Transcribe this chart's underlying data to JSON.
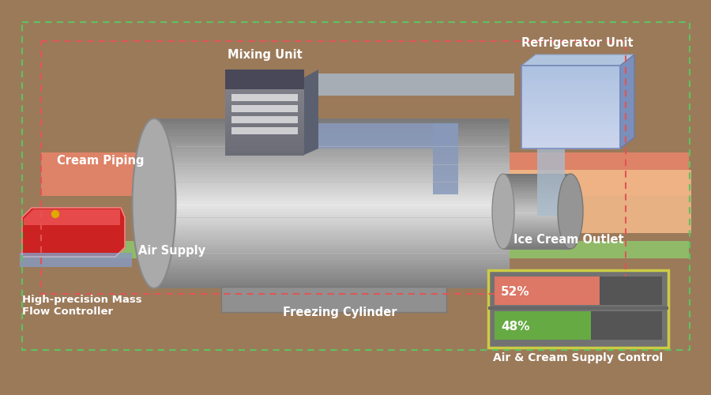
{
  "bg_color": "#9b7a5a",
  "cream_piping_label": "Cream Piping",
  "air_supply_label": "Air Supply",
  "ice_cream_outlet_label": "Ice Cream Outlet",
  "freezing_cylinder_label": "Freezing Cylinder",
  "mixing_unit_label": "Mixing Unit",
  "refrigerator_unit_label": "Refrigerator Unit",
  "mass_flow_label": "High-precision Mass\nFlow Controller",
  "supply_control_label": "Air & Cream Supply Control",
  "air_pct": 52,
  "cream_pct": 48,
  "cream_pipe_color": "#e8856a",
  "air_pipe_color": "#8fc46a",
  "outlet_pipe_color": "#f0b888",
  "dashed_red": "#e05555",
  "dashed_green": "#5ec25e",
  "bar_border": "#cccc44",
  "bar_red": "#dd7766",
  "bar_green": "#66aa44",
  "label_color": "#ffffff"
}
